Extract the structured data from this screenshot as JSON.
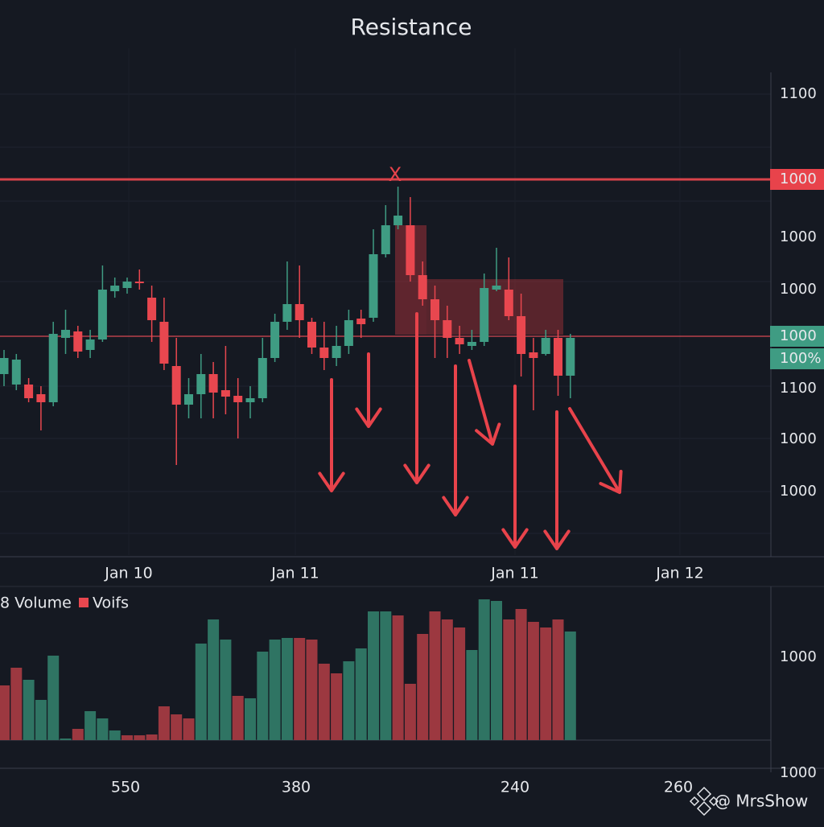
{
  "chart_data": {
    "type": "candlestick",
    "title": "Resistance",
    "x_labels": [
      "Jan 10",
      "Jan 11",
      "Jan 11",
      "Jan 12"
    ],
    "price_labels": [
      "1100",
      "1000",
      "1000",
      "1000",
      "1000",
      "100%",
      "1100",
      "1000",
      "1000"
    ],
    "volume_legend": [
      "8 Volume",
      "Voifs"
    ],
    "volume_axis_labels": [
      "1000",
      "1000"
    ],
    "volume_x_labels": [
      "550",
      "380",
      "240",
      "260"
    ],
    "marker": "X",
    "watermark": "@ MrsShow",
    "up_color": "#3f9c83",
    "down_color": "#e8474f",
    "ylim": [
      0,
      600
    ],
    "resistance_level": 467,
    "support_level": 272,
    "open": [
      225,
      212,
      212,
      200,
      190,
      270,
      278,
      255,
      268,
      328,
      332,
      340,
      320,
      290,
      235,
      187,
      200,
      225,
      205,
      198,
      190,
      195,
      245,
      290,
      312,
      290,
      258,
      245,
      260,
      294,
      295,
      374,
      410,
      410,
      348,
      318,
      292,
      270,
      260,
      265,
      330,
      330,
      297,
      252,
      250,
      270,
      223
    ],
    "high": [
      255,
      250,
      220,
      210,
      290,
      305,
      285,
      280,
      360,
      345,
      345,
      355,
      335,
      320,
      270,
      220,
      250,
      240,
      260,
      220,
      210,
      270,
      300,
      365,
      360,
      295,
      290,
      285,
      305,
      305,
      405,
      435,
      458,
      445,
      365,
      335,
      310,
      285,
      280,
      350,
      382,
      370,
      325,
      270,
      280,
      280,
      275
    ],
    "low": [
      210,
      205,
      190,
      155,
      185,
      250,
      245,
      245,
      265,
      320,
      325,
      330,
      265,
      230,
      112,
      170,
      170,
      170,
      175,
      145,
      170,
      190,
      240,
      280,
      270,
      250,
      230,
      235,
      250,
      270,
      290,
      370,
      405,
      340,
      310,
      245,
      245,
      250,
      255,
      260,
      328,
      292,
      222,
      180,
      248,
      198,
      195
    ],
    "close": [
      245,
      243,
      195,
      190,
      275,
      280,
      253,
      268,
      330,
      335,
      340,
      338,
      292,
      238,
      187,
      200,
      225,
      202,
      197,
      190,
      195,
      245,
      290,
      312,
      292,
      258,
      245,
      260,
      292,
      287,
      374,
      410,
      422,
      348,
      318,
      292,
      270,
      262,
      265,
      332,
      335,
      297,
      250,
      245,
      270,
      223,
      270
    ],
    "volume": {
      "values": [
        68,
        90,
        75,
        50,
        105,
        2,
        14,
        36,
        27,
        12,
        6,
        6,
        7,
        42,
        32,
        27,
        120,
        150,
        125,
        55,
        52,
        110,
        125,
        127,
        127,
        125,
        95,
        83,
        98,
        114,
        160,
        160,
        155,
        70,
        132,
        160,
        150,
        140,
        112,
        175,
        173,
        150,
        163,
        147,
        140,
        150,
        135
      ],
      "up": [
        false,
        false,
        true,
        true,
        true,
        true,
        false,
        true,
        true,
        true,
        false,
        false,
        false,
        false,
        false,
        false,
        true,
        true,
        true,
        false,
        true,
        true,
        true,
        true,
        false,
        false,
        false,
        false,
        true,
        true,
        true,
        true,
        false,
        false,
        false,
        false,
        false,
        false,
        true,
        true,
        true,
        false,
        false,
        false,
        false,
        false,
        true
      ],
      "ylim": [
        0,
        180
      ],
      "up_color": "#2f7463",
      "down_color": "#9c3840"
    }
  }
}
